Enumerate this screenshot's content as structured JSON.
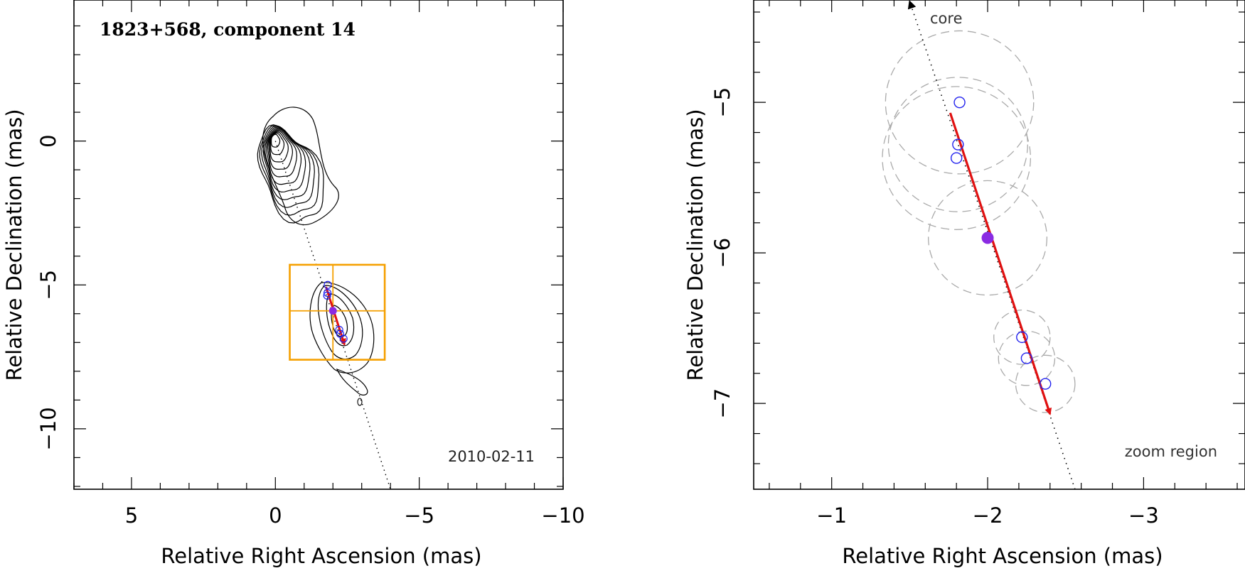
{
  "chart_data": [
    {
      "type": "scatter",
      "title": "1823+568, component 14",
      "date_label": "2010-02-11",
      "xlabel": "Relative Right Ascension (mas)",
      "ylabel": "Relative Declination (mas)",
      "xlim": [
        7,
        -10
      ],
      "ylim": [
        -12.1,
        4.9
      ],
      "x_ticks": [
        5,
        0,
        -5,
        -10
      ],
      "y_ticks": [
        0,
        -5,
        -10
      ],
      "x_tick_labels": [
        "5",
        "0",
        "−5",
        "−10"
      ],
      "y_tick_labels": [
        "0",
        "−5",
        "−10"
      ],
      "jet_axis": [
        [
          0,
          0
        ],
        [
          -4,
          -12.1
        ]
      ],
      "contour_levels": 11,
      "zoom_box": {
        "x": [
          -0.5,
          -3.8
        ],
        "y": [
          -4.3,
          -7.6
        ],
        "center": [
          -2.0,
          -5.9
        ]
      },
      "component_positions": [
        {
          "x": -1.82,
          "y": -5.0
        },
        {
          "x": -1.81,
          "y": -5.28
        },
        {
          "x": -1.8,
          "y": -5.37
        },
        {
          "x": -2.22,
          "y": -6.56
        },
        {
          "x": -2.25,
          "y": -6.7
        },
        {
          "x": -2.37,
          "y": -6.87
        }
      ],
      "mean_position": {
        "x": -2.0,
        "y": -5.9
      },
      "motion_vector": {
        "from": [
          -1.76,
          -5.07
        ],
        "to": [
          -2.4,
          -7.07
        ]
      },
      "colors": {
        "contours": "#000000",
        "components": "#2222ee",
        "mean": "#8a2be2",
        "vector": "#e01010",
        "zoom_box": "#f5a000"
      }
    },
    {
      "type": "scatter",
      "title": "",
      "core_label": "core",
      "region_label": "zoom region",
      "xlabel": "Relative Right Ascension (mas)",
      "ylabel": "Relative Declination (mas)",
      "xlim": [
        -0.5,
        -3.65
      ],
      "ylim": [
        -7.57,
        -4.32
      ],
      "x_ticks": [
        -1,
        -2,
        -3
      ],
      "y_ticks": [
        -5,
        -6,
        -7
      ],
      "x_tick_labels": [
        "−1",
        "−2",
        "−3"
      ],
      "y_tick_labels": [
        "−5",
        "−6",
        "−7"
      ],
      "jet_axis": [
        [
          -1.5,
          -4.32
        ],
        [
          -2.56,
          -7.57
        ]
      ],
      "component_positions": [
        {
          "x": -1.82,
          "y": -5.0
        },
        {
          "x": -1.81,
          "y": -5.28
        },
        {
          "x": -1.8,
          "y": -5.37
        },
        {
          "x": -2.22,
          "y": -6.56
        },
        {
          "x": -2.25,
          "y": -6.7
        },
        {
          "x": -2.37,
          "y": -6.87
        }
      ],
      "component_extents": [
        0.5,
        0.47,
        0.5,
        0.19,
        0.19,
        0.2
      ],
      "mean_position": {
        "x": -2.0,
        "y": -5.9
      },
      "mean_extent": 0.38,
      "motion_vector": {
        "from": [
          -1.76,
          -5.07
        ],
        "to": [
          -2.4,
          -7.07
        ]
      },
      "colors": {
        "components": "#2222ee",
        "mean": "#8a2be2",
        "vector": "#e01010",
        "circles": "#aaaaaa"
      }
    }
  ]
}
